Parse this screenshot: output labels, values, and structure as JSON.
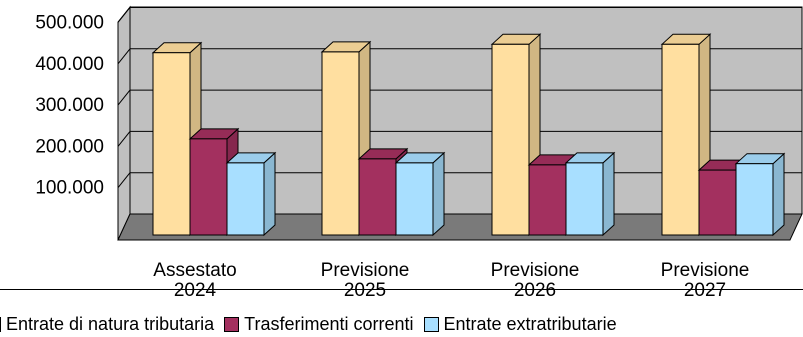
{
  "chart_data": {
    "type": "bar",
    "categories": [
      [
        "Assestato",
        "2024"
      ],
      [
        "Previsione",
        "2025"
      ],
      [
        "Previsione",
        "2026"
      ],
      [
        "Previsione",
        "2027"
      ]
    ],
    "series": [
      {
        "name": "Entrate di natura tributaria",
        "color": "#FFDFA0",
        "values": [
          455000,
          457000,
          476000,
          476000
        ]
      },
      {
        "name": "Trasferimenti correnti",
        "color": "#A3305F",
        "values": [
          240000,
          190000,
          175000,
          162000
        ]
      },
      {
        "name": "Entrate extratributarie",
        "color": "#A8DFFF",
        "values": [
          180000,
          180000,
          180000,
          178000
        ]
      }
    ],
    "ylim": [
      0,
      500000
    ],
    "yticks": [
      "100.000",
      "200.000",
      "300.000",
      "400.000",
      "500.000"
    ],
    "ytick_values": [
      100000,
      200000,
      300000,
      400000,
      500000
    ],
    "grid": true,
    "legend_position": "bottom"
  }
}
